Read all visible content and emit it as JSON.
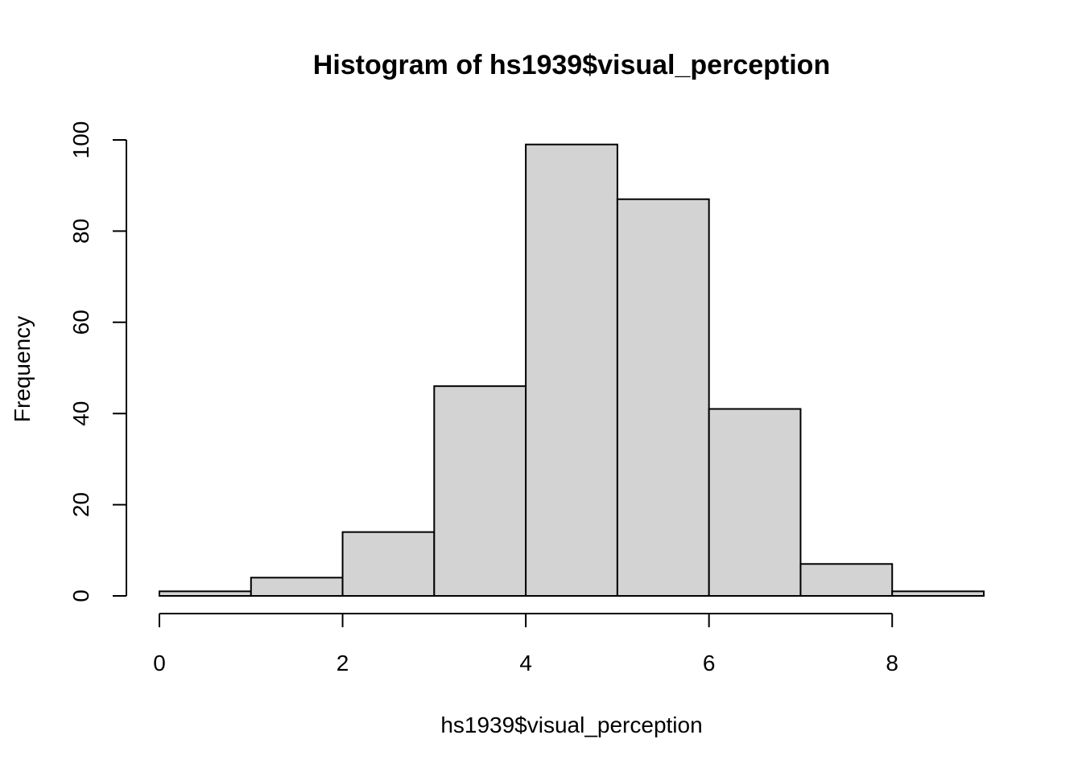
{
  "chart_data": {
    "type": "bar",
    "title": "Histogram of hs1939$visual_perception",
    "xlabel": "hs1939$visual_perception",
    "ylabel": "Frequency",
    "bins": [
      {
        "x0": 0,
        "x1": 1,
        "count": 1
      },
      {
        "x0": 1,
        "x1": 2,
        "count": 4
      },
      {
        "x0": 2,
        "x1": 3,
        "count": 14
      },
      {
        "x0": 3,
        "x1": 4,
        "count": 46
      },
      {
        "x0": 4,
        "x1": 5,
        "count": 99
      },
      {
        "x0": 5,
        "x1": 6,
        "count": 87
      },
      {
        "x0": 6,
        "x1": 7,
        "count": 41
      },
      {
        "x0": 7,
        "x1": 8,
        "count": 7
      },
      {
        "x0": 8,
        "x1": 9,
        "count": 1
      }
    ],
    "xlim": [
      0,
      9
    ],
    "ylim": [
      0,
      100
    ],
    "x_ticks": [
      0,
      2,
      4,
      6,
      8
    ],
    "y_ticks": [
      0,
      20,
      40,
      60,
      80,
      100
    ],
    "bar_fill": "#d3d3d3",
    "bar_stroke": "#000000",
    "grid": false,
    "legend": "none"
  }
}
